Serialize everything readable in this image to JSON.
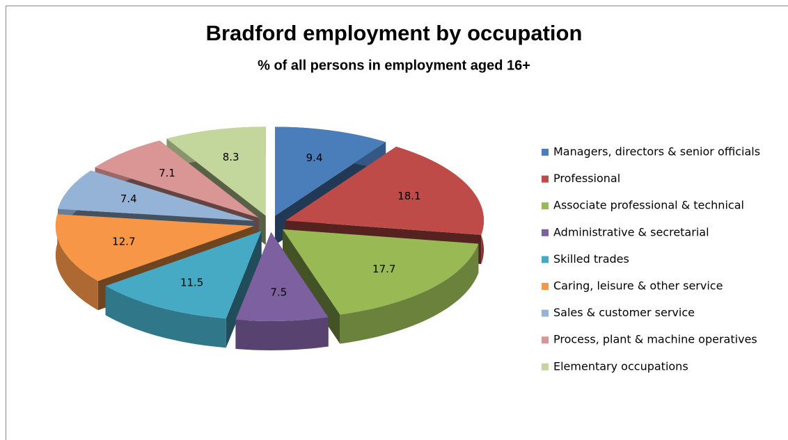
{
  "chart_data": {
    "type": "pie",
    "title": "Bradford employment by occupation",
    "subtitle": "% of all persons in employment aged 16+",
    "categories": [
      "Managers, directors & senior officials",
      "Professional",
      "Associate professional & technical",
      "Administrative & secretarial",
      "Skilled trades",
      "Caring, leisure & other service",
      "Sales & customer service",
      "Process, plant & machine operatives",
      "Elementary occupations"
    ],
    "values": [
      9.4,
      18.1,
      17.7,
      7.5,
      11.5,
      12.7,
      7.4,
      7.1,
      8.3
    ],
    "colors": [
      "#4a7ebb",
      "#be4b48",
      "#98b954",
      "#7d60a0",
      "#46aac5",
      "#f79646",
      "#95b3d7",
      "#d99694",
      "#c3d69b"
    ],
    "legend": "right"
  }
}
